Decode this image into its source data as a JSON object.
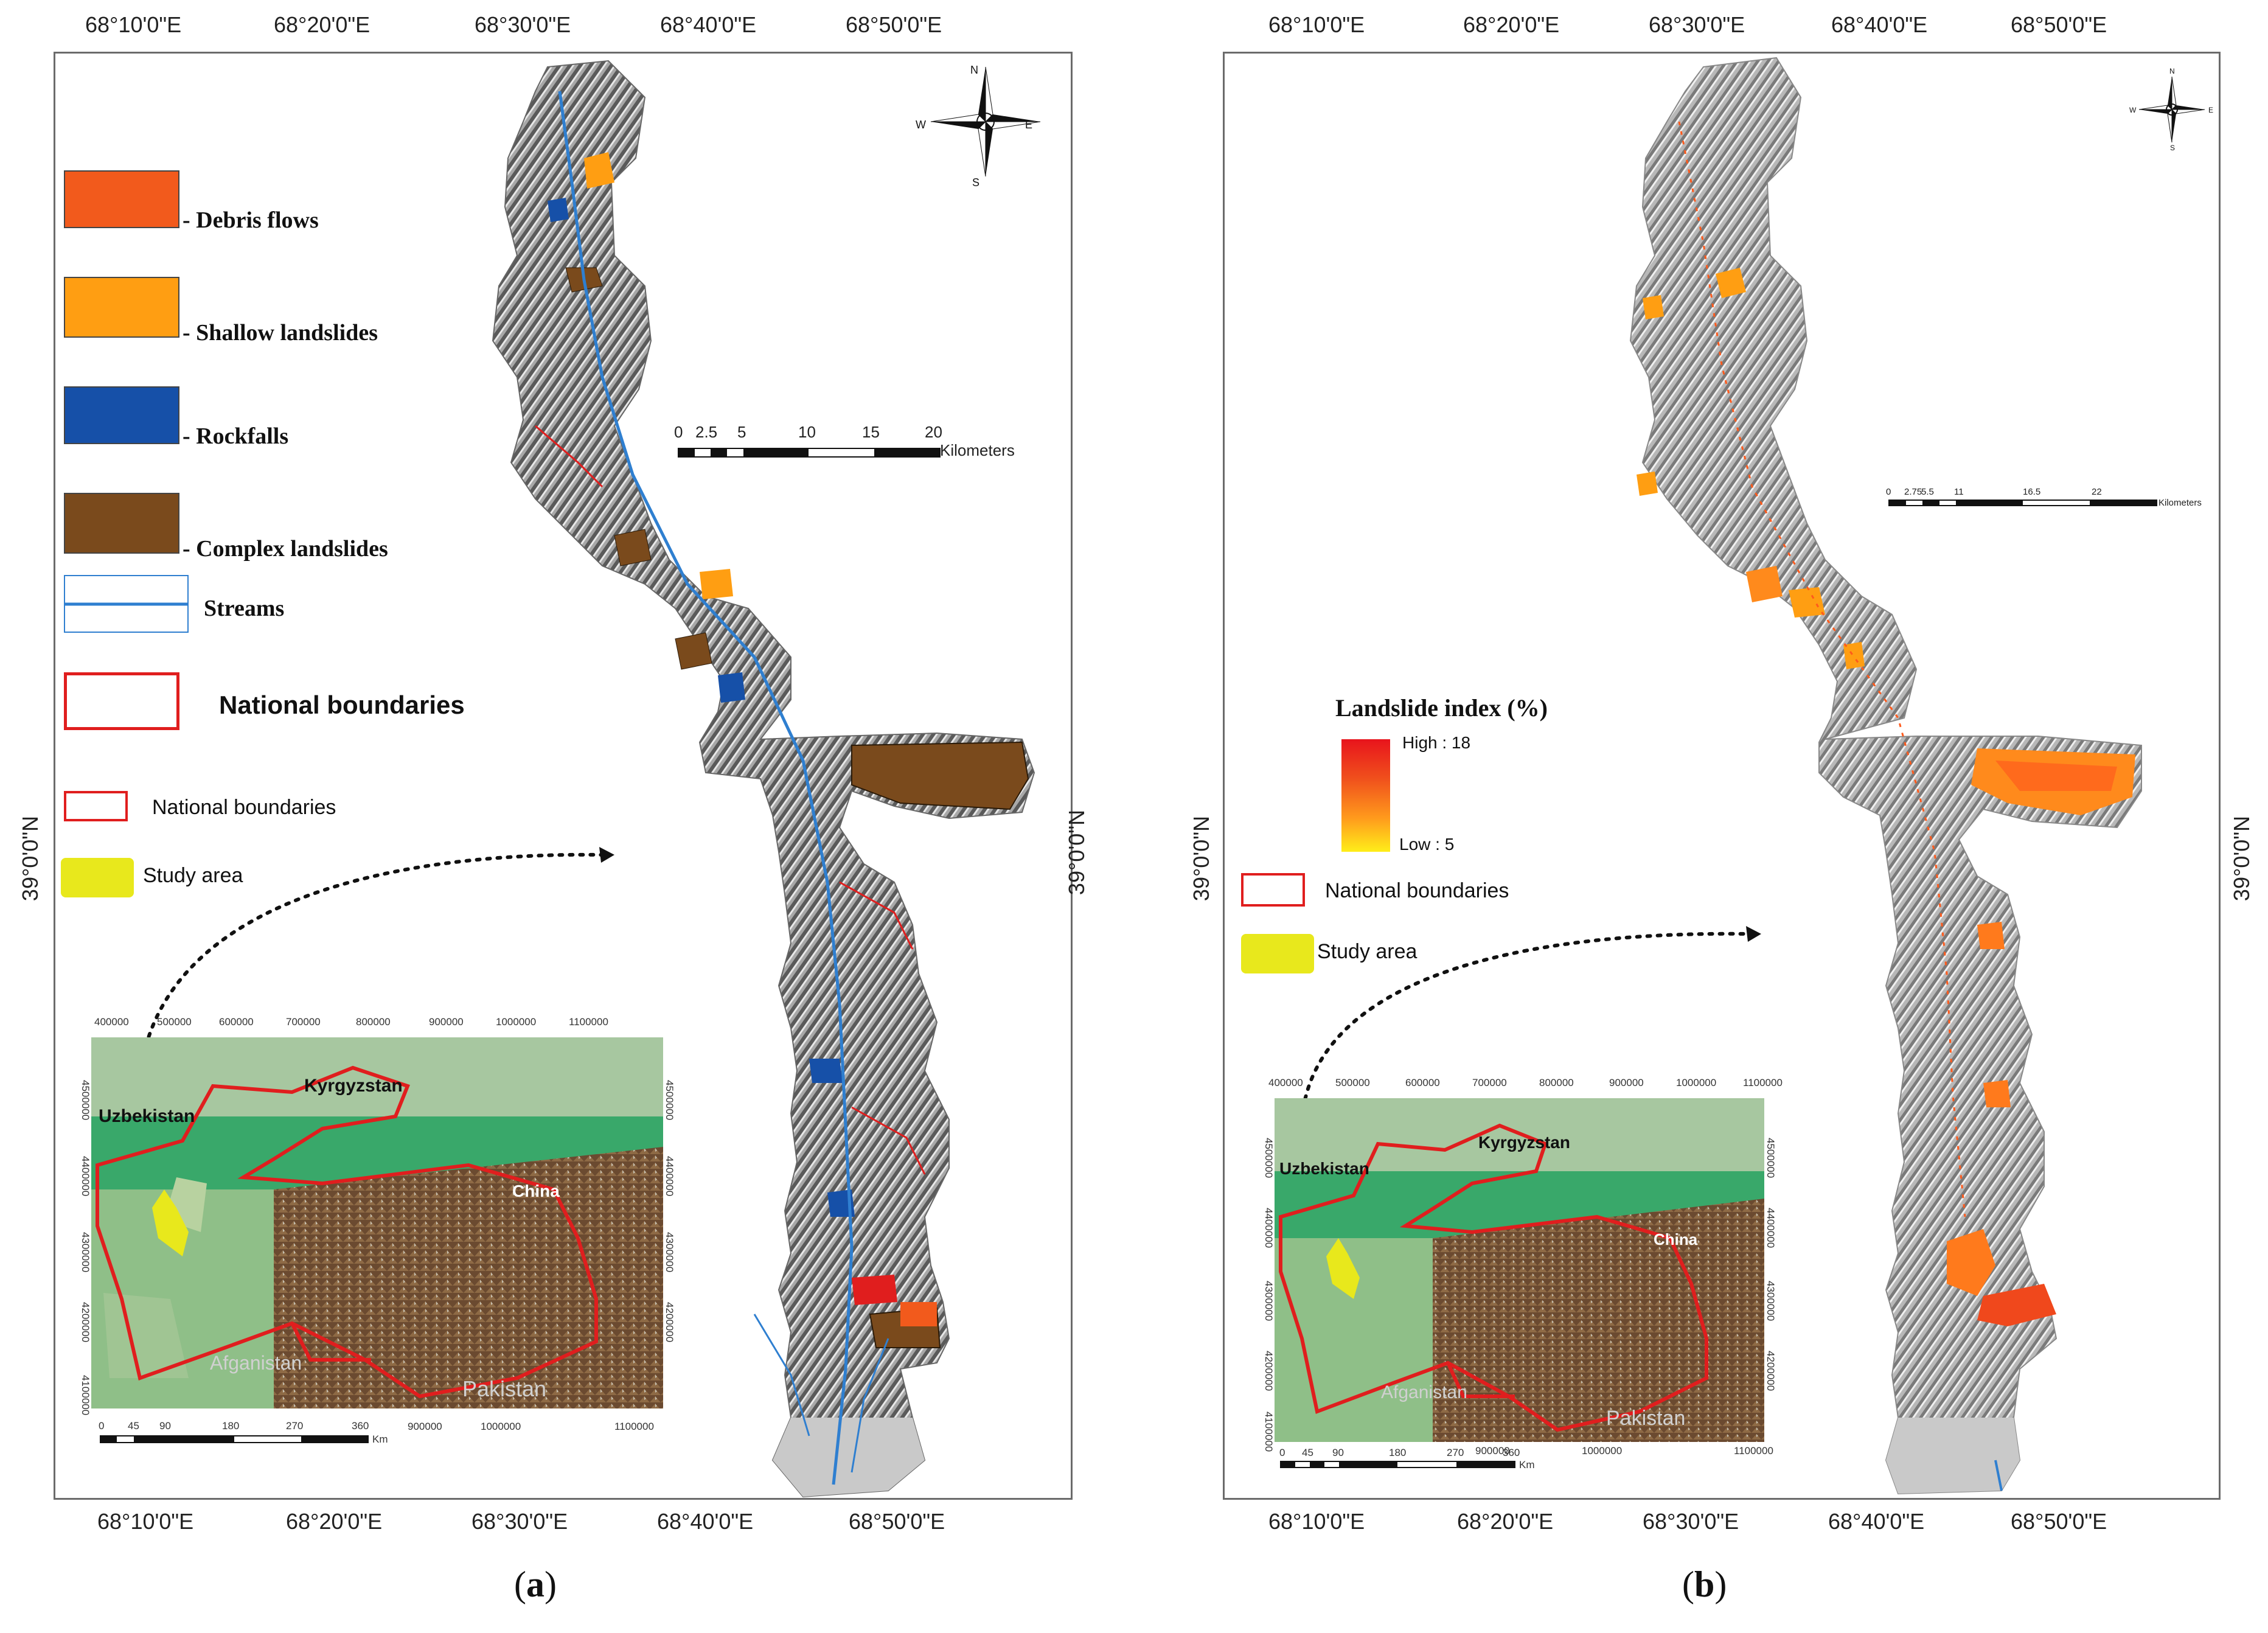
{
  "panels": [
    {
      "caption": "a",
      "lon_labels": [
        "68°10'0\"E",
        "68°20'0\"E",
        "68°30'0\"E",
        "68°40'0\"E",
        "68°50'0\"E"
      ],
      "lat_label": "39°0'0\"N",
      "legend": [
        {
          "label": "- Debris flows",
          "color": "#f25a1c"
        },
        {
          "label": "- Shallow landslides",
          "color": "#ff9e12"
        },
        {
          "label": "- Rockfalls",
          "color": "#1650a8"
        },
        {
          "label": "- Complex landslides",
          "color": "#7a4a1c"
        },
        {
          "label": "Streams",
          "color": "#2f7fd0"
        },
        {
          "label": "National boundaries",
          "color": "#e01e1e"
        }
      ],
      "scalebar": {
        "ticks": [
          "0",
          "2.5",
          "5",
          "10",
          "15",
          "20"
        ],
        "unit": "Kilometers"
      },
      "inset_legend": [
        {
          "label": "National boundaries",
          "color": "#e01e1e"
        },
        {
          "label": "Study area",
          "color": "#e8e81c"
        }
      ]
    },
    {
      "caption": "b",
      "lon_labels": [
        "68°10'0\"E",
        "68°20'0\"E",
        "68°30'0\"E",
        "68°40'0\"E",
        "68°50'0\"E"
      ],
      "lat_label": "39°0'0\"N",
      "index_legend": {
        "title": "Landslide index (%)",
        "high": "High : 18",
        "low": "Low : 5",
        "color_high": "#e8141c",
        "color_low": "#ffee1a"
      },
      "scalebar": {
        "ticks": [
          "0",
          "2.75",
          "5.5",
          "11",
          "16.5",
          "22"
        ],
        "unit": "Kilometers"
      },
      "inset_legend": [
        {
          "label": "National boundaries",
          "color": "#e01e1e"
        },
        {
          "label": "Study area",
          "color": "#e8e81c"
        }
      ]
    }
  ],
  "inset": {
    "x_ticks": [
      "400000",
      "500000",
      "600000",
      "700000",
      "800000",
      "900000",
      "1000000",
      "1100000"
    ],
    "y_ticks": [
      "4500000",
      "4400000",
      "4300000",
      "4200000",
      "4100000"
    ],
    "countries": [
      "Kyrgyzstan",
      "Uzbekistan",
      "China",
      "Afganistan",
      "Pakistan"
    ],
    "scalebar_ticks": [
      "0",
      "45",
      "90",
      "180",
      "270",
      "360"
    ],
    "scalebar_unit": "Km"
  },
  "compass": {
    "n": "N",
    "s": "S",
    "e": "E",
    "w": "W"
  }
}
